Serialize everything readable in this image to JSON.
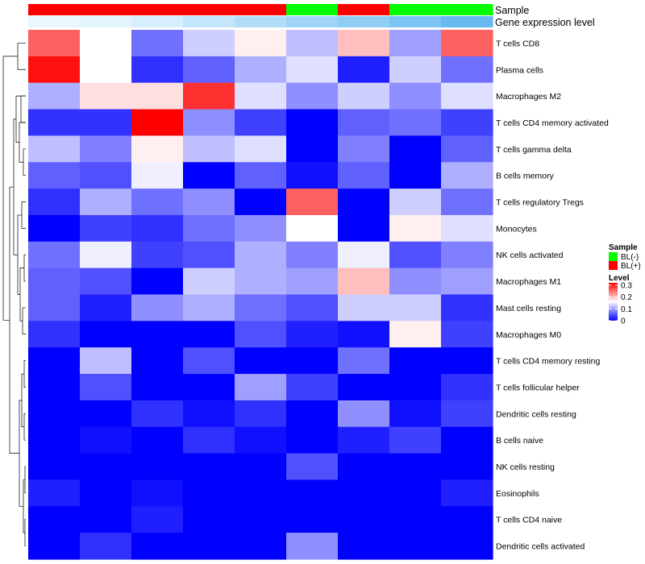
{
  "chart_data": {
    "type": "heatmap",
    "annotation_labels": {
      "sample": "Sample",
      "gene_expression": "Gene expression level"
    },
    "rows": [
      "T cells CD8",
      "Plasma cells",
      "Macrophages M2",
      "T cells CD4 memory activated",
      "T cells gamma delta",
      "B cells memory",
      "T cells regulatory  Tregs",
      "Monocytes",
      "NK cells activated",
      "Macrophages M1",
      "Mast cells resting",
      "Macrophages M0",
      "T cells CD4 memory resting",
      "T cells follicular helper",
      "Dendritic cells resting",
      "B cells naive",
      "NK cells resting",
      "Eosinophils",
      "T cells CD4 naive",
      "Dendritic cells activated"
    ],
    "columns": 9,
    "sample_groups": [
      "BL(+)",
      "BL(+)",
      "BL(+)",
      "BL(+)",
      "BL(+)",
      "BL(-)",
      "BL(+)",
      "BL(-)",
      "BL(-)"
    ],
    "gene_expression_level": [
      0.05,
      0.1,
      0.18,
      0.3,
      0.42,
      0.55,
      0.65,
      0.78,
      0.92
    ],
    "values": [
      [
        0.26,
        0.16,
        0.07,
        0.13,
        0.17,
        0.12,
        0.2,
        0.1,
        0.26
      ],
      [
        0.31,
        0.16,
        0.03,
        0.06,
        0.11,
        0.14,
        0.02,
        0.13,
        0.07
      ],
      [
        0.11,
        0.18,
        0.18,
        0.29,
        0.14,
        0.09,
        0.13,
        0.09,
        0.14
      ],
      [
        0.03,
        0.03,
        0.32,
        0.09,
        0.04,
        0.0,
        0.06,
        0.07,
        0.04
      ],
      [
        0.12,
        0.08,
        0.17,
        0.12,
        0.14,
        0.0,
        0.08,
        0.0,
        0.06
      ],
      [
        0.06,
        0.05,
        0.15,
        0.0,
        0.06,
        0.01,
        0.06,
        0.0,
        0.11
      ],
      [
        0.03,
        0.11,
        0.07,
        0.09,
        0.0,
        0.26,
        0.0,
        0.13,
        0.07
      ],
      [
        0.0,
        0.04,
        0.03,
        0.07,
        0.09,
        0.16,
        0.0,
        0.17,
        0.14
      ],
      [
        0.07,
        0.15,
        0.04,
        0.05,
        0.11,
        0.08,
        0.15,
        0.05,
        0.08
      ],
      [
        0.06,
        0.05,
        0.0,
        0.13,
        0.11,
        0.1,
        0.2,
        0.09,
        0.1
      ],
      [
        0.06,
        0.02,
        0.09,
        0.11,
        0.07,
        0.05,
        0.13,
        0.13,
        0.03
      ],
      [
        0.03,
        0.0,
        0.0,
        0.0,
        0.05,
        0.02,
        0.01,
        0.17,
        0.04
      ],
      [
        0.0,
        0.12,
        0.0,
        0.05,
        0.0,
        0.0,
        0.07,
        0.0,
        0.0
      ],
      [
        0.0,
        0.05,
        0.0,
        0.0,
        0.1,
        0.04,
        0.0,
        0.0,
        0.03
      ],
      [
        0.0,
        0.0,
        0.03,
        0.01,
        0.03,
        0.0,
        0.09,
        0.01,
        0.04
      ],
      [
        0.0,
        0.01,
        0.0,
        0.03,
        0.01,
        0.0,
        0.02,
        0.04,
        0.0
      ],
      [
        0.0,
        0.0,
        0.0,
        0.0,
        0.0,
        0.05,
        0.0,
        0.0,
        0.0
      ],
      [
        0.02,
        0.0,
        0.01,
        0.0,
        0.0,
        0.0,
        0.0,
        0.0,
        0.02
      ],
      [
        0.0,
        0.0,
        0.02,
        0.0,
        0.0,
        0.0,
        0.0,
        0.0,
        0.0
      ],
      [
        0.0,
        0.03,
        0.0,
        0.0,
        0.0,
        0.09,
        0.0,
        0.0,
        0.0
      ]
    ],
    "colorscale": {
      "low": "#0000ff",
      "mid": "#ffffff",
      "high": "#ff0000",
      "min": 0,
      "mid_value": 0.16,
      "max": 0.32
    },
    "legend": {
      "sample_title": "Sample",
      "sample_items": [
        {
          "label": "BL(-)",
          "color": "#00ff00"
        },
        {
          "label": "BL(+)",
          "color": "#ff0000"
        }
      ],
      "level_title": "Level",
      "level_ticks": [
        "0.3",
        "0.2",
        "0.1",
        "0"
      ],
      "level_tick_values": [
        0.3,
        0.2,
        0.1,
        0
      ]
    },
    "gene_expression_colors": {
      "low": "#f2fbff",
      "high": "#5ab4f0"
    }
  }
}
